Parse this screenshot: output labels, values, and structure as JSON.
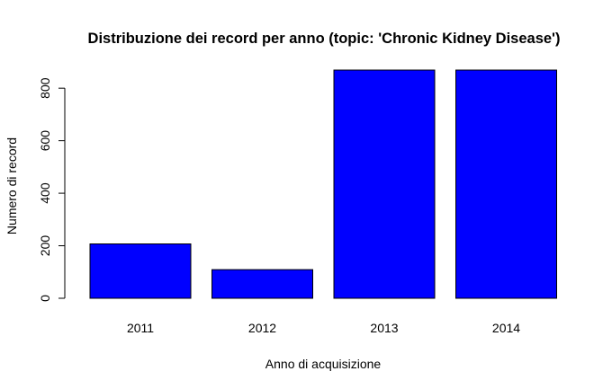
{
  "chart_data": {
    "type": "bar",
    "title": "Distribuzione dei record per anno (topic: 'Chronic Kidney Disease')",
    "xlabel": "Anno di acquisizione",
    "ylabel": "Numero di record",
    "categories": [
      "2011",
      "2012",
      "2013",
      "2014"
    ],
    "values": [
      207,
      109,
      869,
      869
    ],
    "y_ticks": [
      "0",
      "200",
      "400",
      "600",
      "800"
    ],
    "ylim": [
      0,
      869
    ],
    "bar_color": "#0000ff",
    "bar_border_color": "#000000",
    "grid": false,
    "legend": "none"
  }
}
